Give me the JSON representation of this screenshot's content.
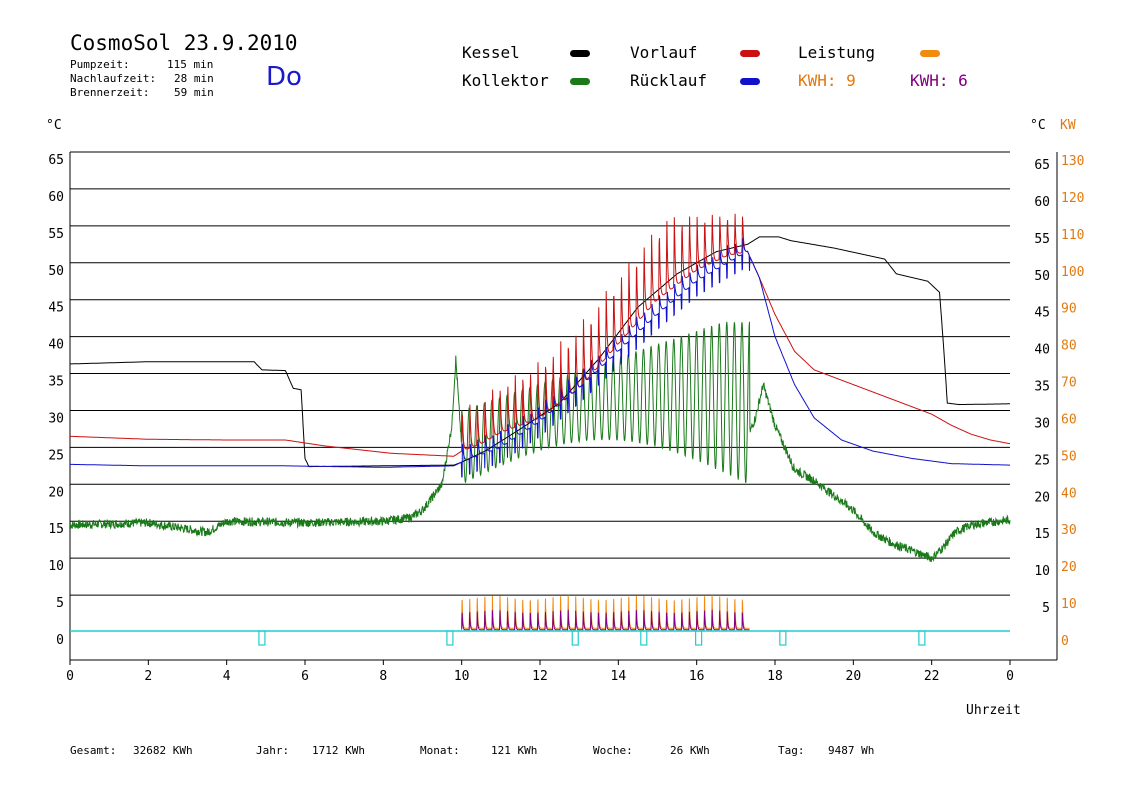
{
  "header": {
    "title": "CosmoSol 23.9.2010",
    "day": "Do",
    "pump_label": "Pumpzeit:",
    "pump_value": "115 min",
    "nachlauf_label": "Nachlaufzeit:",
    "nachlauf_value": "28 min",
    "brenner_label": "Brennerzeit:",
    "brenner_value": "59 min"
  },
  "legend": {
    "kessel": "Kessel",
    "kollektor": "Kollektor",
    "vorlauf": "Vorlauf",
    "ruecklauf": "Rücklauf",
    "leistung": "Leistung",
    "kwh1": "KWH: 9",
    "kwh2": "KWH: 6"
  },
  "colors": {
    "kessel": "#000000",
    "kollektor": "#1a7a1a",
    "vorlauf": "#cc1111",
    "ruecklauf": "#1111cc",
    "leistung": "#f08a10",
    "kwh2": "#800080",
    "pump": "#22cccc"
  },
  "axes": {
    "left_unit": "°C",
    "right_unit_c": "°C",
    "right_unit_kw": "KW",
    "xlabel": "Uhrzeit"
  },
  "footer": {
    "gesamt_label": "Gesamt:",
    "gesamt_value": "32682 KWh",
    "jahr_label": "Jahr:",
    "jahr_value": "1712 KWh",
    "monat_label": "Monat:",
    "monat_value": "121 KWh",
    "woche_label": "Woche:",
    "woche_value": "26 KWh",
    "tag_label": "Tag:",
    "tag_value": "9487 Wh"
  },
  "chart_data": {
    "type": "line",
    "x_unit": "hour of day",
    "xlim": [
      0,
      24
    ],
    "ylim": [
      0,
      65
    ],
    "y2lim": [
      0,
      130
    ],
    "x_ticks": [
      "0",
      "2",
      "4",
      "6",
      "8",
      "10",
      "12",
      "14",
      "16",
      "18",
      "20",
      "22",
      "0"
    ],
    "y_ticks_left": [
      "65",
      "60",
      "55",
      "50",
      "45",
      "40",
      "35",
      "30",
      "25",
      "20",
      "15",
      "10",
      "5",
      "0"
    ],
    "y_ticks_right_c": [
      "65",
      "60",
      "55",
      "50",
      "45",
      "40",
      "35",
      "30",
      "25",
      "20",
      "15",
      "10",
      "5"
    ],
    "y_ticks_right_kw": [
      "130",
      "120",
      "110",
      "100",
      "90",
      "80",
      "70",
      "60",
      "50",
      "40",
      "30",
      "20",
      "10",
      "0"
    ],
    "grid": true,
    "series": [
      {
        "name": "Kessel",
        "key": "kessel",
        "points": [
          [
            0,
            36.3
          ],
          [
            2,
            36.6
          ],
          [
            4.7,
            36.6
          ],
          [
            4.9,
            35.5
          ],
          [
            5.5,
            35.4
          ],
          [
            5.7,
            33
          ],
          [
            5.9,
            32.8
          ],
          [
            6.0,
            23.5
          ],
          [
            6.1,
            22.4
          ],
          [
            9.8,
            22.6
          ],
          [
            10,
            23
          ],
          [
            10.6,
            24.5
          ],
          [
            11.5,
            27.5
          ],
          [
            12.5,
            31
          ],
          [
            13.5,
            37
          ],
          [
            14.5,
            44
          ],
          [
            15.5,
            48.5
          ],
          [
            16.5,
            51.5
          ],
          [
            17.3,
            52.5
          ],
          [
            17.6,
            53.5
          ],
          [
            18.1,
            53.5
          ],
          [
            18.4,
            53
          ],
          [
            19.5,
            52
          ],
          [
            20.8,
            50.5
          ],
          [
            21.1,
            48.5
          ],
          [
            21.5,
            48
          ],
          [
            21.9,
            47.5
          ],
          [
            22.2,
            46
          ],
          [
            22.3,
            39
          ],
          [
            22.4,
            31
          ],
          [
            22.7,
            30.8
          ],
          [
            24,
            30.9
          ]
        ]
      },
      {
        "name": "Vorlauf",
        "key": "vorlauf",
        "points": [
          [
            0,
            26.5
          ],
          [
            2,
            26.1
          ],
          [
            4,
            26
          ],
          [
            5.5,
            26
          ],
          [
            6.5,
            25.2
          ],
          [
            8.2,
            24.2
          ],
          [
            9.8,
            23.8
          ],
          [
            10,
            24.5
          ],
          [
            10.5,
            25.5
          ],
          [
            11,
            27
          ],
          [
            12,
            29
          ],
          [
            13,
            33
          ],
          [
            14,
            39
          ],
          [
            15,
            45
          ],
          [
            16,
            49
          ],
          [
            16.8,
            51
          ],
          [
            17.3,
            51.5
          ],
          [
            17.6,
            48
          ],
          [
            18,
            43
          ],
          [
            18.5,
            38
          ],
          [
            19,
            35.5
          ],
          [
            20,
            33.5
          ],
          [
            21,
            31.5
          ],
          [
            22,
            29.5
          ],
          [
            22.5,
            28
          ],
          [
            23,
            26.8
          ],
          [
            23.5,
            26
          ],
          [
            24,
            25.5
          ]
        ]
      },
      {
        "name": "Rücklauf",
        "key": "ruecklauf",
        "points": [
          [
            0,
            22.7
          ],
          [
            2,
            22.5
          ],
          [
            5.5,
            22.5
          ],
          [
            8,
            22.3
          ],
          [
            9.8,
            22.5
          ],
          [
            10,
            23
          ],
          [
            11,
            25
          ],
          [
            12,
            28.5
          ],
          [
            13,
            33
          ],
          [
            14,
            38
          ],
          [
            15,
            43
          ],
          [
            16,
            47.5
          ],
          [
            16.8,
            50
          ],
          [
            17.3,
            51.5
          ],
          [
            17.6,
            48
          ],
          [
            18,
            40
          ],
          [
            18.5,
            33.5
          ],
          [
            19,
            29
          ],
          [
            19.7,
            26
          ],
          [
            20.5,
            24.5
          ],
          [
            21.5,
            23.5
          ],
          [
            22.5,
            22.8
          ],
          [
            24,
            22.6
          ]
        ]
      },
      {
        "name": "Kollektor",
        "key": "kollektor",
        "points": [
          [
            0,
            14.5
          ],
          [
            2,
            14.8
          ],
          [
            3.5,
            13.5
          ],
          [
            4,
            15
          ],
          [
            6,
            14.8
          ],
          [
            8,
            15
          ],
          [
            8.7,
            15.5
          ],
          [
            9,
            16.5
          ],
          [
            9.5,
            20
          ],
          [
            9.75,
            28
          ],
          [
            9.85,
            37
          ],
          [
            10,
            25
          ],
          [
            10.5,
            23
          ],
          [
            11,
            22
          ],
          [
            12,
            24
          ],
          [
            13,
            25
          ],
          [
            14,
            27
          ],
          [
            15,
            26
          ],
          [
            16,
            23
          ],
          [
            16.8,
            23
          ],
          [
            17.2,
            25
          ],
          [
            17.5,
            29
          ],
          [
            17.7,
            33.5
          ],
          [
            18,
            28
          ],
          [
            18.5,
            22
          ],
          [
            19,
            20.5
          ],
          [
            19.5,
            18.5
          ],
          [
            20,
            16.5
          ],
          [
            20.5,
            13.5
          ],
          [
            21,
            12
          ],
          [
            21.5,
            11
          ],
          [
            22,
            10
          ],
          [
            22.3,
            11.5
          ],
          [
            22.6,
            13.5
          ],
          [
            23,
            14.5
          ],
          [
            24,
            15.2
          ]
        ]
      }
    ],
    "oscillation": {
      "x_start": 10.0,
      "x_end": 17.35,
      "cycles": 38,
      "vorlauf_peak": 57,
      "kollektor_peak": 42,
      "kollektor_trough": 20
    },
    "leistung": {
      "x_start": 10.0,
      "x_end": 17.35,
      "cycles": 38,
      "peak_kw": 10,
      "base_kw": 1
    },
    "pump_markers": [
      4.9,
      9.7,
      12.9,
      14.65,
      16.05,
      18.2,
      21.75
    ]
  }
}
